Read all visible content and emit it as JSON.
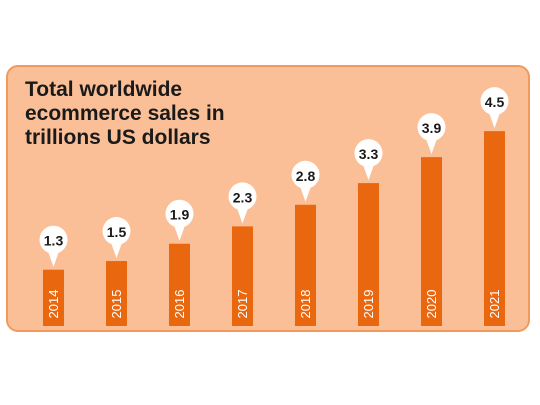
{
  "chart_data": {
    "type": "bar",
    "title": "Total worldwide ecommerce sales in trillions US dollars",
    "categories": [
      "2014",
      "2015",
      "2016",
      "2017",
      "2018",
      "2019",
      "2020",
      "2021"
    ],
    "values": [
      1.3,
      1.5,
      1.9,
      2.3,
      2.8,
      3.3,
      3.9,
      4.5
    ],
    "value_labels": [
      "1.3",
      "1.5",
      "1.9",
      "2.3",
      "2.8",
      "3.3",
      "3.9",
      "4.5"
    ],
    "xlabel": "",
    "ylabel": "",
    "grid": false,
    "legend": "none",
    "colors": {
      "bar": "#e8670f",
      "panel": "#fbbf98",
      "label_bubble": "#ffffff"
    }
  }
}
